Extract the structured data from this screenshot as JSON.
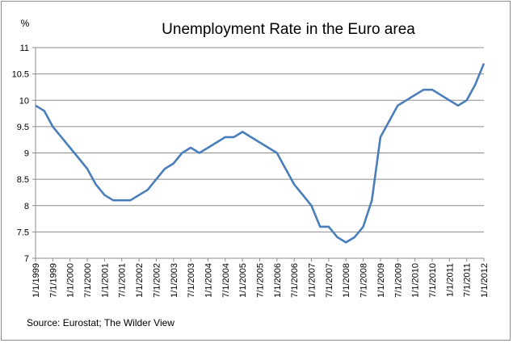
{
  "chart_data": {
    "type": "line",
    "title": "Unemployment Rate in the Euro area",
    "ylabel": "%",
    "source": "Source: Eurostat; The Wilder View",
    "ylim": [
      7,
      11
    ],
    "yticks": [
      7,
      7.5,
      8,
      8.5,
      9,
      9.5,
      10,
      10.5,
      11
    ],
    "ytick_labels": [
      "7",
      "7.5",
      "8",
      "8.5",
      "9",
      "9.5",
      "10",
      "10.5",
      "11"
    ],
    "xlim": [
      "1999-01",
      "2012-01"
    ],
    "x_tick_labels": [
      "1/1/1999",
      "7/1/1999",
      "1/1/2000",
      "7/1/2000",
      "1/1/2001",
      "7/1/2001",
      "1/1/2002",
      "7/1/2002",
      "1/1/2003",
      "7/1/2003",
      "1/1/2004",
      "7/1/2004",
      "1/1/2005",
      "7/1/2005",
      "1/1/2006",
      "7/1/2006",
      "1/1/2007",
      "7/1/2007",
      "1/1/2008",
      "7/1/2008",
      "1/1/2009",
      "7/1/2009",
      "1/1/2010",
      "7/1/2010",
      "1/1/2011",
      "7/1/2011",
      "1/1/2012"
    ],
    "grid": true,
    "series_color": "#4a7ebb",
    "series": [
      {
        "x": [
          "1999-01",
          "1999-04",
          "1999-07",
          "1999-10",
          "2000-01",
          "2000-04",
          "2000-07",
          "2000-10",
          "2001-01",
          "2001-04",
          "2001-07",
          "2001-10",
          "2002-01",
          "2002-04",
          "2002-07",
          "2002-10",
          "2003-01",
          "2003-04",
          "2003-07",
          "2003-10",
          "2004-01",
          "2004-04",
          "2004-07",
          "2004-10",
          "2005-01",
          "2005-04",
          "2005-07",
          "2005-10",
          "2006-01",
          "2006-04",
          "2006-07",
          "2006-10",
          "2007-01",
          "2007-04",
          "2007-07",
          "2007-10",
          "2008-01",
          "2008-04",
          "2008-07",
          "2008-10",
          "2009-01",
          "2009-04",
          "2009-07",
          "2009-10",
          "2010-01",
          "2010-04",
          "2010-07",
          "2010-10",
          "2011-01",
          "2011-04",
          "2011-07",
          "2011-10",
          "2012-01"
        ],
        "values": [
          9.9,
          9.8,
          9.5,
          9.3,
          9.1,
          8.9,
          8.7,
          8.4,
          8.2,
          8.1,
          8.1,
          8.1,
          8.2,
          8.3,
          8.5,
          8.7,
          8.8,
          9.0,
          9.1,
          9.0,
          9.1,
          9.2,
          9.3,
          9.3,
          9.4,
          9.3,
          9.2,
          9.1,
          9.0,
          8.7,
          8.4,
          8.2,
          8.0,
          7.6,
          7.6,
          7.4,
          7.3,
          7.4,
          7.6,
          8.1,
          9.3,
          9.6,
          9.9,
          10.0,
          10.1,
          10.2,
          10.2,
          10.1,
          10.0,
          9.9,
          10.0,
          10.3,
          10.7
        ]
      }
    ]
  }
}
